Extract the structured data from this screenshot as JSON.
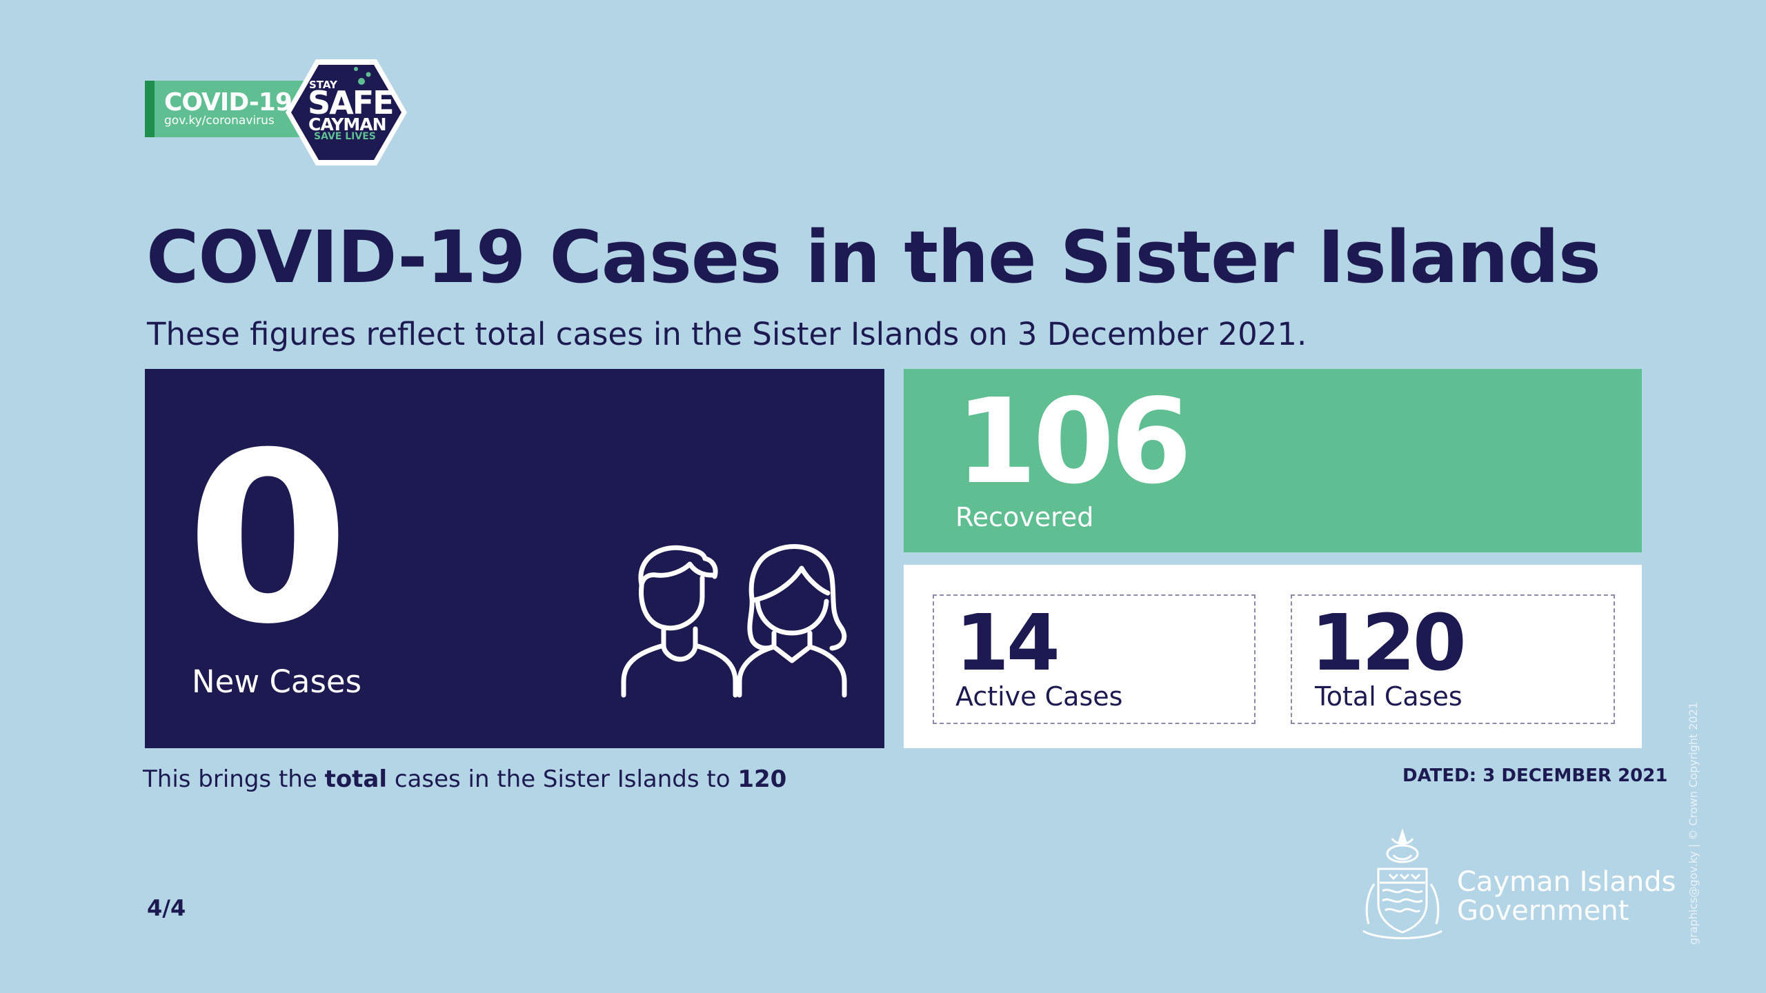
{
  "logo": {
    "covid_title": "COVID-19",
    "url": "gov.ky/coronavirus",
    "stay": "STAY",
    "safe": "SAFE",
    "cayman": "CAYMAN",
    "save_lives": "SAVE LIVES"
  },
  "title": "COVID-19 Cases in the Sister Islands",
  "subtitle": "These figures reflect total cases in the Sister Islands on 3 December 2021.",
  "new_cases": {
    "value": "0",
    "label": "New Cases",
    "icon": "people-icon"
  },
  "recovered": {
    "value": "106",
    "label": "Recovered"
  },
  "active": {
    "value": "14",
    "label": "Active Cases"
  },
  "total": {
    "value": "120",
    "label": "Total Cases"
  },
  "summary": {
    "prefix": "This brings the ",
    "bold_word": "total",
    "middle": " cases in the Sister Islands to ",
    "value": "120"
  },
  "dated": "DATED: 3 DECEMBER 2021",
  "page_number": "4/4",
  "government": {
    "line1": "Cayman Islands",
    "line2": "Government",
    "icon": "coat-of-arms-icon"
  },
  "credit": "graphics@gov.ky | © Crown Copyright 2021",
  "colors": {
    "background": "#b4d5e6",
    "navy": "#1c1a50",
    "green": "#5fbf92",
    "white": "#ffffff"
  }
}
